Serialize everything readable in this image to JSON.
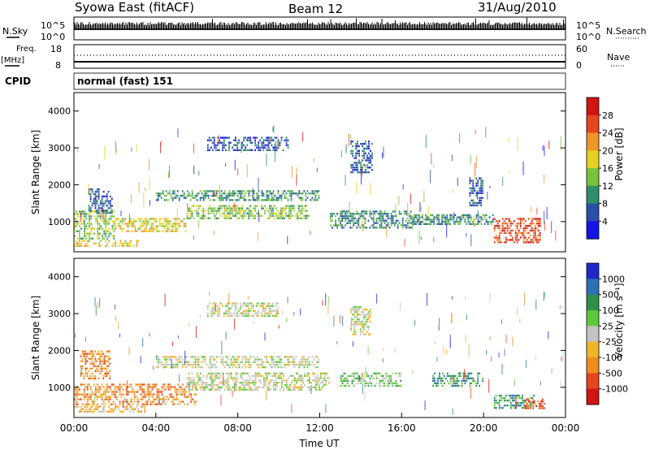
{
  "header": {
    "station": "Syowa East (fitACF)",
    "beam": "Beam 12",
    "date": "31/Aug/2010"
  },
  "top_panels": {
    "nsky_label": "N.Sky",
    "nsky_ticks": [
      "10^5",
      "10^0"
    ],
    "nsearch_label": "N.Search",
    "nsearch_ticks": [
      "10^5",
      "10^0"
    ],
    "freq_label": "Freq.",
    "freq_unit": "[MHz]",
    "freq_ticks": [
      "18",
      "8"
    ],
    "nave_label": "Nave",
    "nave_ticks": [
      "60",
      "0"
    ],
    "cpid_label": "CPID",
    "cpid_value": "normal (fast) 151"
  },
  "chart_data": [
    {
      "type": "heatmap",
      "name": "power",
      "ylabel": "Slant Range [km]",
      "ylim": [
        180,
        4500
      ],
      "yticks": [
        "1000",
        "2000",
        "3000",
        "4000"
      ],
      "xlim": [
        0,
        24
      ],
      "colorbar_label": "Power [dB]",
      "colorbar_ticks": [
        "4",
        "8",
        "12",
        "16",
        "20",
        "24",
        "28"
      ],
      "colorbar_colors": [
        "#1414e6",
        "#2a4fa8",
        "#2f8f6b",
        "#78c23c",
        "#e6d21e",
        "#f09628",
        "#e6461e",
        "#d21414"
      ],
      "echo_regions": [
        {
          "t0": 0.0,
          "t1": 2.0,
          "r0": 500,
          "r1": 1300,
          "level": 3
        },
        {
          "t0": 0.7,
          "t1": 1.9,
          "r0": 1200,
          "r1": 1900,
          "level": 1
        },
        {
          "t0": 0.0,
          "t1": 3.2,
          "r0": 300,
          "r1": 500,
          "level": 4
        },
        {
          "t0": 2.0,
          "t1": 5.5,
          "r0": 700,
          "r1": 1100,
          "level": 4
        },
        {
          "t0": 4.0,
          "t1": 12.0,
          "r0": 1550,
          "r1": 1850,
          "level": 2
        },
        {
          "t0": 5.5,
          "t1": 11.5,
          "r0": 1050,
          "r1": 1450,
          "level": 3
        },
        {
          "t0": 6.5,
          "t1": 10.5,
          "r0": 2900,
          "r1": 3300,
          "level": 1
        },
        {
          "t0": 13.5,
          "t1": 14.6,
          "r0": 2300,
          "r1": 3200,
          "level": 1
        },
        {
          "t0": 12.5,
          "t1": 16.5,
          "r0": 800,
          "r1": 1300,
          "level": 2
        },
        {
          "t0": 16.5,
          "t1": 20.5,
          "r0": 900,
          "r1": 1200,
          "level": 2
        },
        {
          "t0": 19.3,
          "t1": 20.0,
          "r0": 1400,
          "r1": 2200,
          "level": 1
        },
        {
          "t0": 20.5,
          "t1": 22.8,
          "r0": 400,
          "r1": 1100,
          "level": 6
        }
      ]
    },
    {
      "type": "heatmap",
      "name": "velocity",
      "ylabel": "Slant Range [km]",
      "ylim": [
        180,
        4500
      ],
      "yticks": [
        "1000",
        "2000",
        "3000",
        "4000"
      ],
      "xlim": [
        0,
        24
      ],
      "xticks": [
        "00:00",
        "04:00",
        "08:00",
        "12:00",
        "16:00",
        "20:00",
        "00:00"
      ],
      "xlabel": "Time UT",
      "colorbar_label": "Velocity [m s⁻¹]",
      "colorbar_ticks": [
        "1000",
        "500",
        "100",
        "25",
        "-25",
        "-100",
        "-500",
        "-1000"
      ],
      "colorbar_colors": [
        "#1e28c8",
        "#2a72b4",
        "#2f8f4b",
        "#5cc83c",
        "#c4c4c0",
        "#f0b428",
        "#f08c1e",
        "#e6461e",
        "#d21414"
      ],
      "echo_regions": [
        {
          "t0": 0.0,
          "t1": 6.0,
          "r0": 500,
          "r1": 1100,
          "level": 6
        },
        {
          "t0": 0.3,
          "t1": 1.8,
          "r0": 1200,
          "r1": 2000,
          "level": 6
        },
        {
          "t0": 0.0,
          "t1": 3.5,
          "r0": 300,
          "r1": 500,
          "level": 5
        },
        {
          "t0": 4.0,
          "t1": 12.0,
          "r0": 1500,
          "r1": 1850,
          "level": 4
        },
        {
          "t0": 5.5,
          "t1": 12.5,
          "r0": 900,
          "r1": 1400,
          "level": 4
        },
        {
          "t0": 6.5,
          "t1": 10.0,
          "r0": 2900,
          "r1": 3300,
          "level": 4
        },
        {
          "t0": 13.5,
          "t1": 14.5,
          "r0": 2400,
          "r1": 3200,
          "level": 4
        },
        {
          "t0": 13.0,
          "t1": 16.0,
          "r0": 1000,
          "r1": 1400,
          "level": 3
        },
        {
          "t0": 17.5,
          "t1": 20.0,
          "r0": 1000,
          "r1": 1400,
          "level": 2
        },
        {
          "t0": 20.5,
          "t1": 22.5,
          "r0": 400,
          "r1": 800,
          "level": 2
        },
        {
          "t0": 22.0,
          "t1": 23.0,
          "r0": 400,
          "r1": 700,
          "level": 7
        }
      ]
    }
  ]
}
